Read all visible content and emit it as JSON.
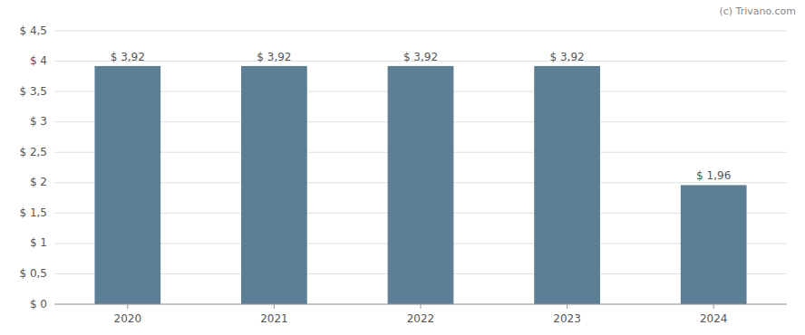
{
  "chart_data": {
    "type": "bar",
    "categories": [
      "2020",
      "2021",
      "2022",
      "2023",
      "2024"
    ],
    "values": [
      3.92,
      3.92,
      3.92,
      3.92,
      1.96
    ],
    "value_labels": [
      "$ 3,92",
      "$ 3,92",
      "$ 3,92",
      "$ 3,92",
      "$ 1,96"
    ],
    "color": "#5d7f96",
    "ylim": [
      0,
      4.5
    ],
    "yticks": [
      {
        "value": 0,
        "label": "$ 0"
      },
      {
        "value": 0.5,
        "label": "$ 0,5"
      },
      {
        "value": 1.0,
        "label": "$ 1"
      },
      {
        "value": 1.5,
        "label": "$ 1,5"
      },
      {
        "value": 2.0,
        "label": "$ 2"
      },
      {
        "value": 2.5,
        "label": "$ 2,5"
      },
      {
        "value": 3.0,
        "label": "$ 3"
      },
      {
        "value": 3.5,
        "label": "$ 3,5"
      },
      {
        "value": 4.0,
        "label": "$ 4"
      },
      {
        "value": 4.5,
        "label": "$ 4,5"
      }
    ],
    "grid": true,
    "data_labels": true,
    "annotations": [
      "(c) Trivano.com"
    ]
  }
}
